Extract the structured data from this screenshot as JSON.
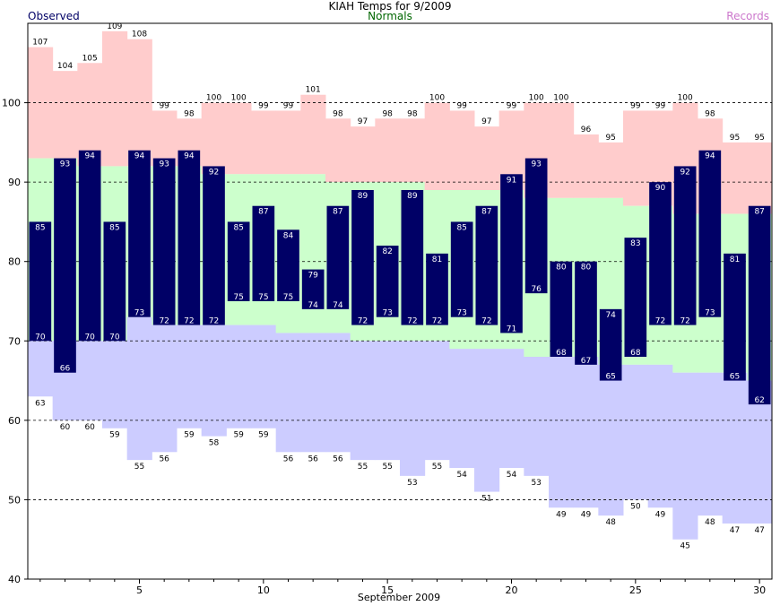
{
  "chart_data": {
    "type": "bar",
    "title": "KIAH Temps for 9/2009",
    "xlabel": "September 2009",
    "ylabel": "",
    "legend": {
      "observed": "Observed",
      "normals": "Normals",
      "records": "Records"
    },
    "colors": {
      "observed": "#000066",
      "normals": "#ccffcc",
      "record_high": "#ffcccc",
      "record_low": "#ccccff",
      "label_observed": "#ffffff",
      "label_record": "#000000"
    },
    "ylim": [
      40,
      110
    ],
    "yticks": [
      40,
      50,
      60,
      70,
      80,
      90,
      100
    ],
    "xticks": [
      5,
      10,
      15,
      20,
      25,
      30
    ],
    "days": [
      1,
      2,
      3,
      4,
      5,
      6,
      7,
      8,
      9,
      10,
      11,
      12,
      13,
      14,
      15,
      16,
      17,
      18,
      19,
      20,
      21,
      22,
      23,
      24,
      25,
      26,
      27,
      28,
      29,
      30
    ],
    "series": [
      {
        "name": "Observed",
        "key": "obs_high",
        "values": [
          85,
          93,
          94,
          85,
          94,
          93,
          94,
          92,
          85,
          87,
          84,
          79,
          87,
          89,
          82,
          89,
          81,
          85,
          87,
          91,
          93,
          80,
          80,
          74,
          83,
          90,
          92,
          94,
          81,
          87
        ]
      },
      {
        "name": "Observed",
        "key": "obs_low",
        "values": [
          70,
          66,
          70,
          70,
          73,
          72,
          72,
          72,
          75,
          75,
          75,
          74,
          74,
          72,
          73,
          72,
          72,
          73,
          72,
          71,
          76,
          68,
          67,
          65,
          68,
          72,
          72,
          73,
          65,
          62
        ]
      },
      {
        "name": "Records",
        "key": "rec_high",
        "values": [
          107,
          104,
          105,
          109,
          108,
          99,
          98,
          100,
          100,
          99,
          99,
          101,
          98,
          97,
          98,
          98,
          100,
          99,
          97,
          99,
          100,
          100,
          96,
          95,
          99,
          99,
          100,
          98,
          95,
          95
        ]
      },
      {
        "name": "Records",
        "key": "rec_low",
        "values": [
          63,
          60,
          60,
          59,
          55,
          56,
          59,
          58,
          59,
          59,
          56,
          56,
          56,
          55,
          55,
          53,
          55,
          54,
          51,
          54,
          53,
          49,
          49,
          48,
          50,
          49,
          45,
          48,
          47,
          47
        ]
      },
      {
        "name": "Normals",
        "key": "norm_high",
        "values": [
          93,
          93,
          92,
          92,
          92,
          92,
          92,
          91,
          91,
          91,
          91,
          91,
          90,
          90,
          90,
          90,
          89,
          89,
          89,
          89,
          88,
          88,
          88,
          88,
          87,
          87,
          86,
          86,
          86,
          86
        ]
      },
      {
        "name": "Normals",
        "key": "norm_low",
        "values": [
          70,
          70,
          70,
          70,
          73,
          72,
          72,
          72,
          72,
          72,
          71,
          71,
          71,
          70,
          70,
          70,
          70,
          69,
          69,
          69,
          68,
          68,
          68,
          67,
          67,
          67,
          66,
          66,
          66,
          65
        ]
      }
    ]
  }
}
